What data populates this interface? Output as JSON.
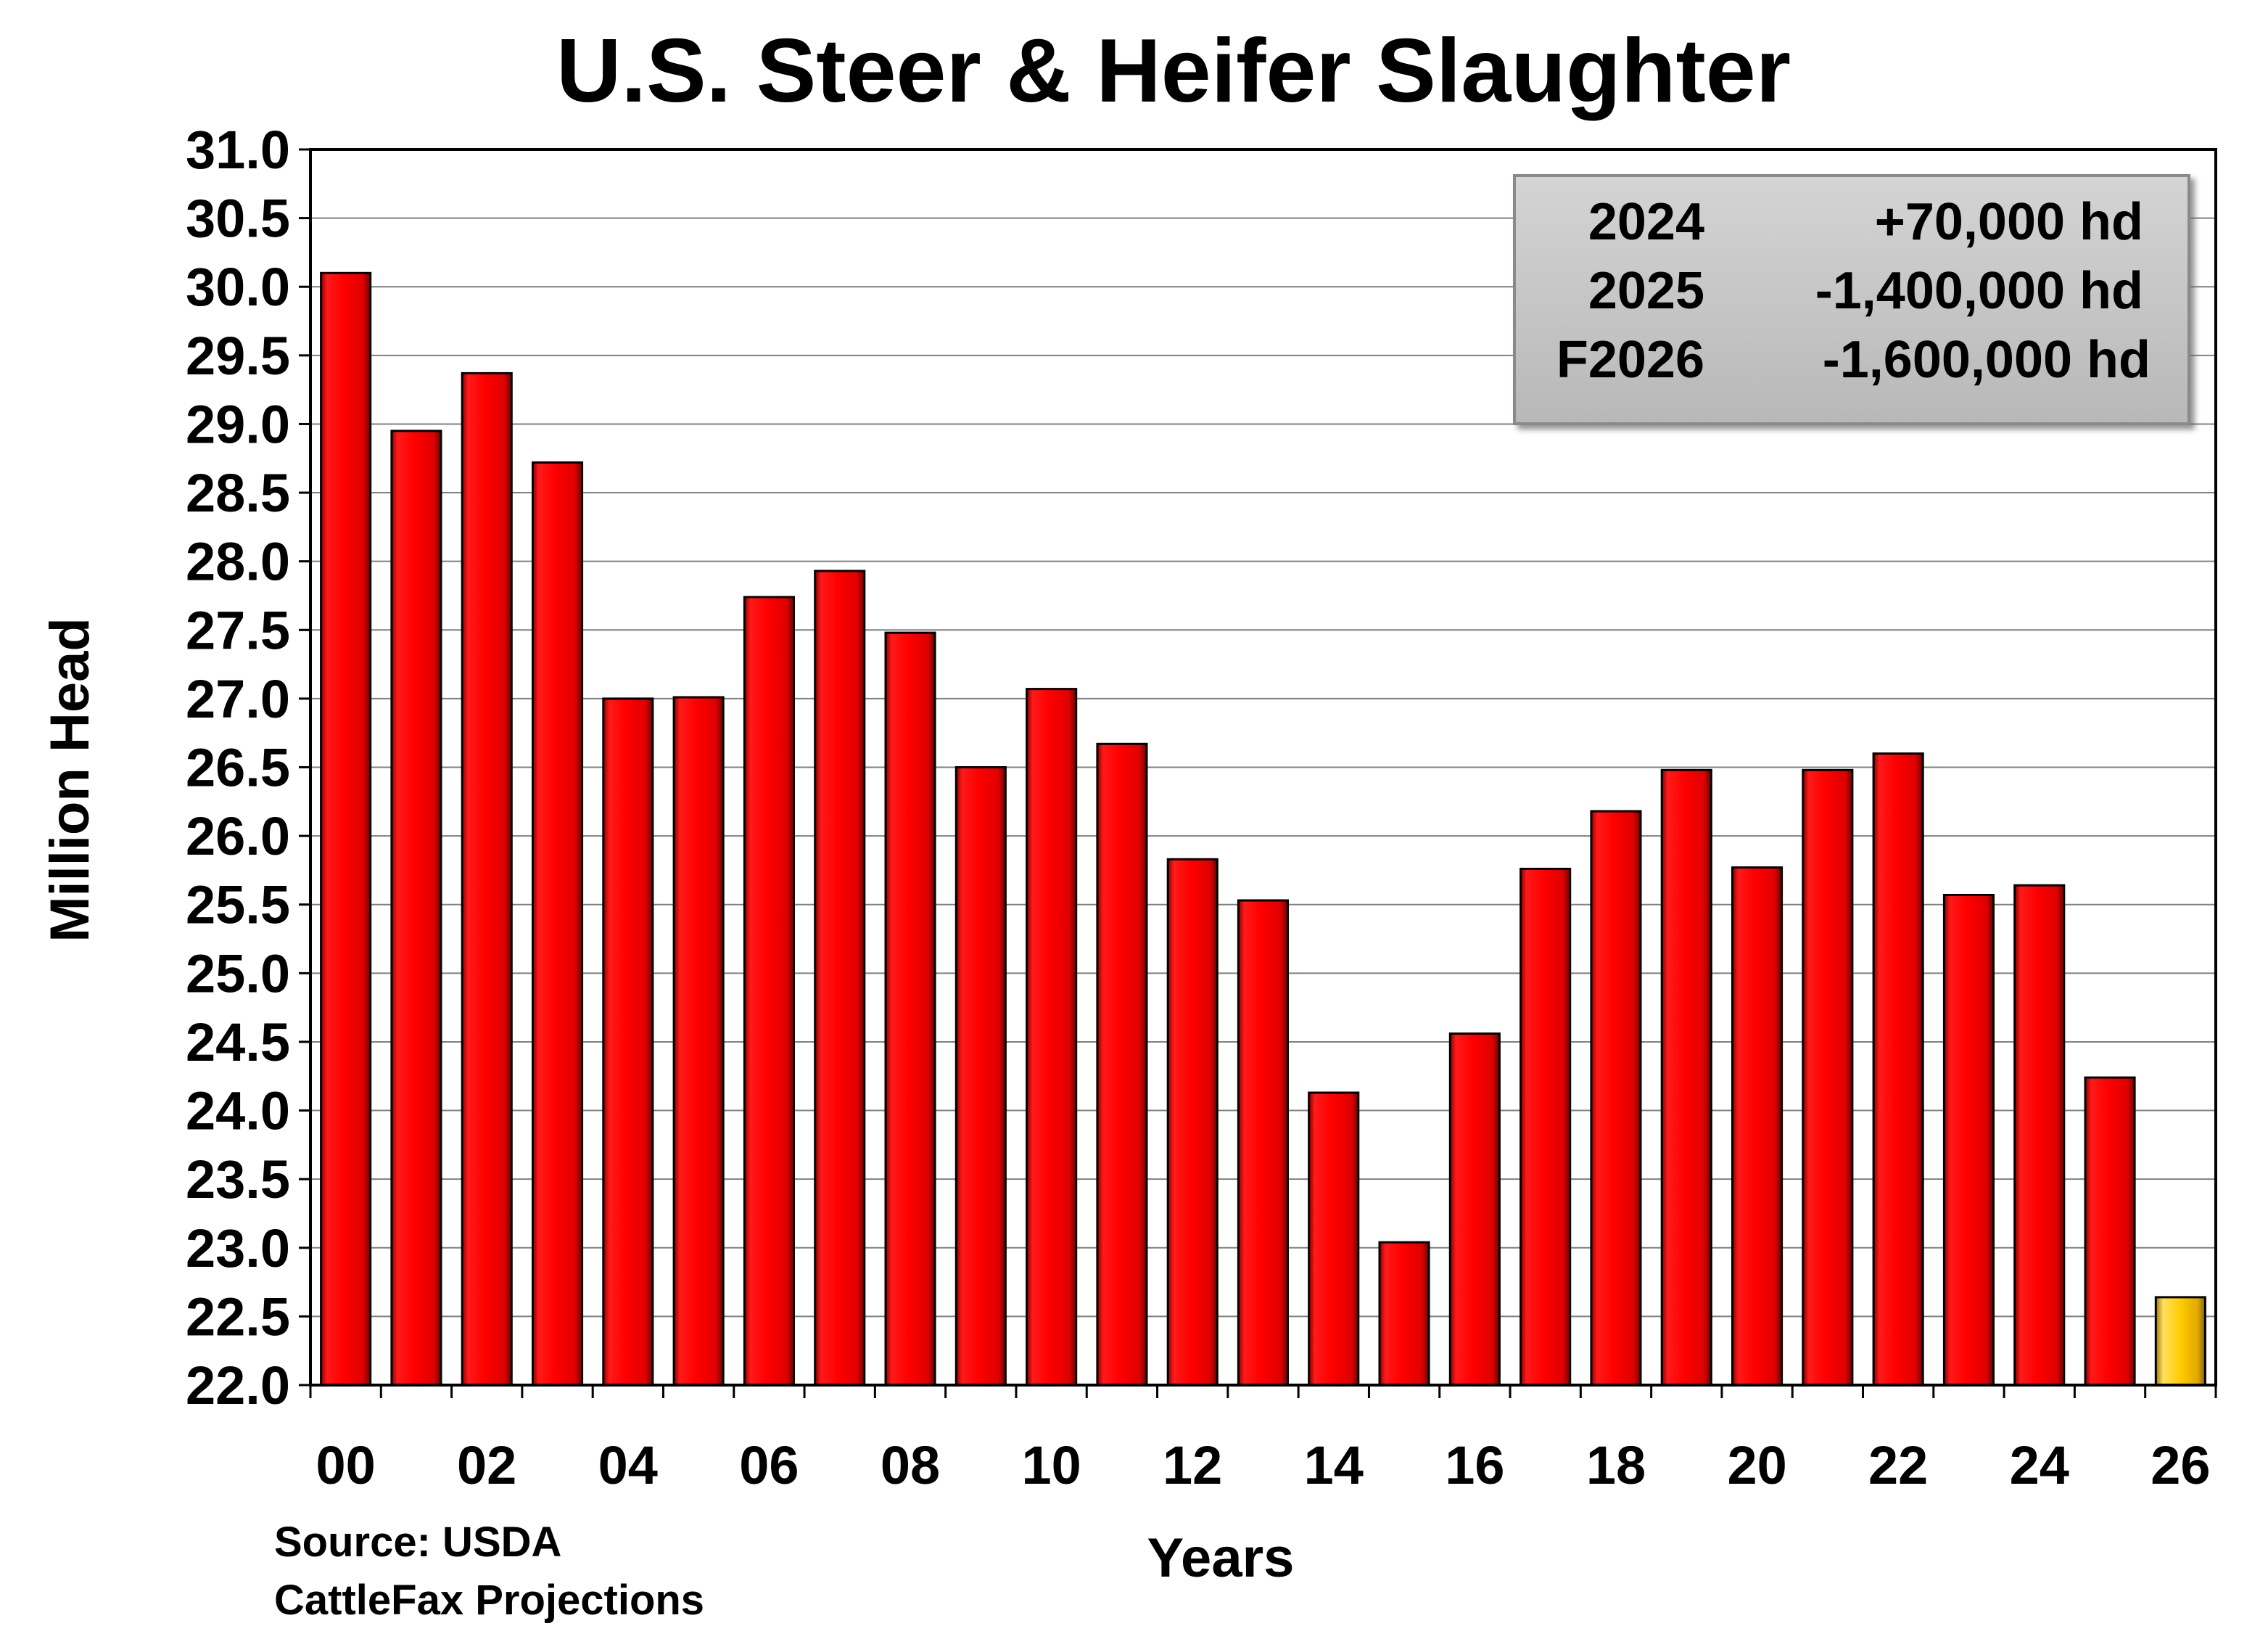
{
  "colors": {
    "bar": "#ff0000",
    "bar_projected": "#ffcc00",
    "grid": "#808080",
    "annotation_box": "#c0c0c0"
  },
  "source": {
    "line1": "Source: USDA",
    "line2": "CattleFax Projections"
  },
  "chart_data": {
    "type": "bar",
    "title": "U.S. Steer & Heifer Slaughter",
    "xlabel": "Years",
    "ylabel": "Million Head",
    "ylim": [
      22.0,
      31.0
    ],
    "yticks": [
      "22.0",
      "22.5",
      "23.0",
      "23.5",
      "24.0",
      "24.5",
      "25.0",
      "25.5",
      "26.0",
      "26.5",
      "27.0",
      "27.5",
      "28.0",
      "28.5",
      "29.0",
      "29.5",
      "30.0",
      "30.5",
      "31.0"
    ],
    "xtick_labels": [
      "00",
      "02",
      "04",
      "06",
      "08",
      "10",
      "12",
      "14",
      "16",
      "18",
      "20",
      "22",
      "24",
      "26"
    ],
    "grid": true,
    "legend": "none",
    "categories": [
      "00",
      "01",
      "02",
      "03",
      "04",
      "05",
      "06",
      "07",
      "08",
      "09",
      "10",
      "11",
      "12",
      "13",
      "14",
      "15",
      "16",
      "17",
      "18",
      "19",
      "20",
      "21",
      "22",
      "23",
      "24",
      "25",
      "26"
    ],
    "values": [
      30.1,
      28.95,
      29.37,
      28.72,
      27.0,
      27.01,
      27.74,
      27.93,
      27.48,
      26.5,
      27.07,
      26.67,
      25.83,
      25.53,
      24.13,
      23.04,
      24.56,
      25.76,
      26.18,
      26.48,
      25.77,
      26.48,
      26.6,
      25.57,
      25.64,
      24.24,
      22.64
    ],
    "projected": [
      false,
      false,
      false,
      false,
      false,
      false,
      false,
      false,
      false,
      false,
      false,
      false,
      false,
      false,
      false,
      false,
      false,
      false,
      false,
      false,
      false,
      false,
      false,
      false,
      false,
      false,
      true
    ],
    "annotation": [
      {
        "label": "2024",
        "value": "+70,000 hd"
      },
      {
        "label": "2025",
        "value": "-1,400,000 hd"
      },
      {
        "label": "F2026",
        "value": "-1,600,000 hd"
      }
    ]
  }
}
